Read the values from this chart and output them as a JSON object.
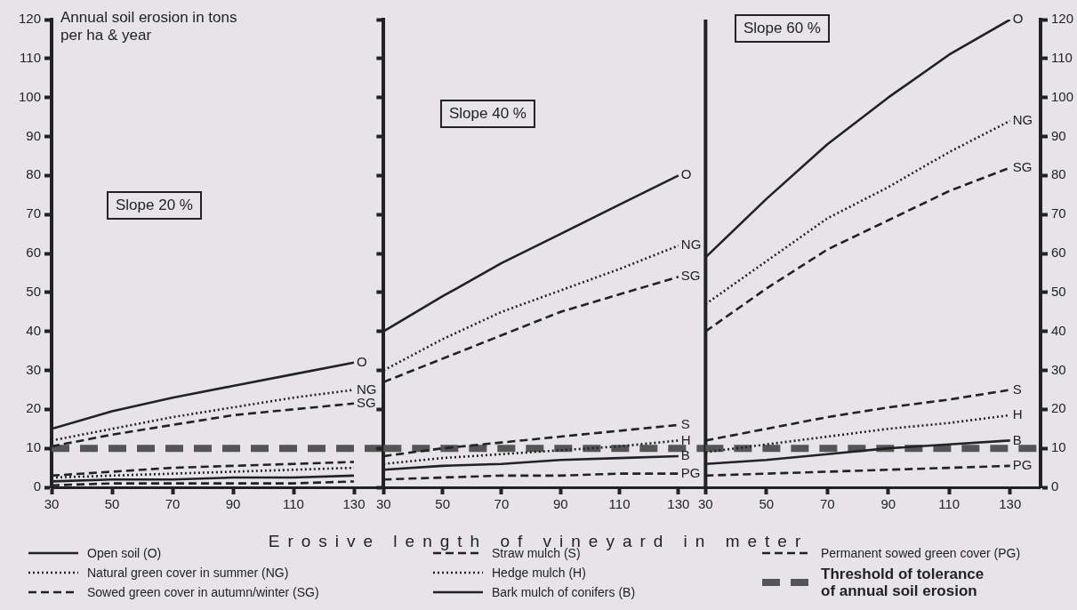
{
  "chart_data": [
    {
      "type": "line",
      "ylabel": "Annual soil erosion in tons per ha & year",
      "x": [
        30,
        50,
        70,
        90,
        110,
        130
      ],
      "xlim": [
        30,
        140
      ],
      "xticks": [
        30,
        50,
        70,
        90,
        110,
        130
      ],
      "ylim": [
        0,
        120
      ],
      "yticks": [
        0,
        10,
        20,
        30,
        40,
        50,
        60,
        70,
        80,
        90,
        100,
        110,
        120
      ],
      "legend": "bottom",
      "marker": "none",
      "grid": false,
      "series": [
        {
          "name": "Open soil (O)",
          "color": "#222222",
          "line_style": "solid",
          "values": [
            15,
            19.5,
            23,
            26,
            29,
            32
          ]
        },
        {
          "name": "Natural green cover in summer (NG)",
          "color": "#222222",
          "line_style": "dotted",
          "values": [
            12,
            15,
            18,
            20.5,
            23,
            25
          ]
        },
        {
          "name": "Sowed green cover in autumn/winter (SG)",
          "color": "#222222",
          "line_style": "dashed",
          "values": [
            10.5,
            13.5,
            16,
            18.5,
            20,
            21.5
          ]
        },
        {
          "name": "Straw mulch (S)",
          "color": "#222222",
          "line_style": "dashed",
          "values": [
            3,
            4,
            5,
            5.5,
            6,
            6.5
          ]
        },
        {
          "name": "Hedge mulch (H)",
          "color": "#222222",
          "line_style": "dotted",
          "values": [
            2.5,
            3,
            3.5,
            4,
            4.5,
            5
          ]
        },
        {
          "name": "Bark mulch of conifers (B)",
          "color": "#222222",
          "line_style": "solid",
          "values": [
            1.5,
            2,
            2,
            2.5,
            2.5,
            3
          ]
        },
        {
          "name": "Permanent sowed green cover (PG)",
          "color": "#222222",
          "line_style": "dashed",
          "values": [
            0.5,
            1,
            1,
            1,
            1,
            1.5
          ]
        }
      ],
      "ref_lines": [
        {
          "axis": "y",
          "value": 10,
          "label": "Threshold of tolerance of annual soil erosion",
          "color": "#555555",
          "line_style": "dashed"
        }
      ],
      "annotations": [
        "Slope 20 %",
        "O",
        "NG",
        "SG"
      ]
    },
    {
      "type": "line",
      "xlabel": "Erosive length of vineyard in meter",
      "x": [
        30,
        50,
        70,
        90,
        110,
        130
      ],
      "xlim": [
        30,
        140
      ],
      "xticks": [
        30,
        50,
        70,
        90,
        110,
        130
      ],
      "ylim": [
        0,
        120
      ],
      "yticks": [
        0,
        10,
        20,
        30,
        40,
        50,
        60,
        70,
        80,
        90,
        100,
        110,
        120
      ],
      "tick_labels": "x",
      "marker": "none",
      "grid": false,
      "series": [
        {
          "color": "#222222",
          "line_style": "solid",
          "values": [
            40,
            49,
            57.5,
            65,
            72.5,
            80
          ]
        },
        {
          "color": "#222222",
          "line_style": "dotted",
          "values": [
            30,
            38,
            45,
            50.5,
            56,
            62
          ]
        },
        {
          "color": "#222222",
          "line_style": "dashed",
          "values": [
            27,
            33,
            39,
            45,
            49.5,
            54
          ]
        },
        {
          "color": "#222222",
          "line_style": "dashed",
          "values": [
            8,
            10,
            11.5,
            13,
            14.5,
            16
          ]
        },
        {
          "color": "#222222",
          "line_style": "dotted",
          "values": [
            6,
            7.5,
            8.5,
            9.5,
            10.5,
            12
          ]
        },
        {
          "color": "#222222",
          "line_style": "solid",
          "values": [
            4.5,
            5.5,
            6,
            7,
            7.5,
            8
          ]
        },
        {
          "color": "#222222",
          "line_style": "dashed",
          "values": [
            2,
            2.5,
            3,
            3,
            3.5,
            3.5
          ]
        }
      ],
      "ref_lines": [
        {
          "axis": "y",
          "value": 10,
          "color": "#555555",
          "line_style": "dashed"
        }
      ],
      "annotations": [
        "Slope 40 %",
        "O",
        "NG",
        "SG",
        "S",
        "H",
        "B",
        "PG"
      ]
    },
    {
      "type": "line",
      "x": [
        30,
        50,
        70,
        90,
        110,
        130
      ],
      "xlim": [
        30,
        140
      ],
      "xticks": [
        30,
        50,
        70,
        90,
        110,
        130
      ],
      "y2lim": [
        0,
        120
      ],
      "y2ticks": [
        0,
        10,
        20,
        30,
        40,
        50,
        60,
        70,
        80,
        90,
        100,
        110,
        120
      ],
      "marker": "none",
      "grid": false,
      "series": [
        {
          "color": "#222222",
          "line_style": "solid",
          "axis": "y2",
          "values": [
            59,
            74,
            88,
            100,
            111,
            120
          ]
        },
        {
          "color": "#222222",
          "line_style": "dotted",
          "axis": "y2",
          "values": [
            47,
            58,
            69,
            77,
            86,
            94
          ]
        },
        {
          "color": "#222222",
          "line_style": "dashed",
          "axis": "y2",
          "values": [
            40,
            51,
            61,
            68.5,
            76,
            82
          ]
        },
        {
          "color": "#222222",
          "line_style": "dashed",
          "axis": "y2",
          "values": [
            12,
            15,
            18,
            20.5,
            22.5,
            25
          ]
        },
        {
          "color": "#222222",
          "line_style": "dotted",
          "axis": "y2",
          "values": [
            9,
            11,
            13,
            15,
            16.5,
            18.5
          ]
        },
        {
          "color": "#222222",
          "line_style": "solid",
          "axis": "y2",
          "values": [
            6,
            7,
            8.5,
            10,
            11,
            12
          ]
        },
        {
          "color": "#222222",
          "line_style": "dashed",
          "axis": "y2",
          "values": [
            3,
            3.5,
            4,
            4.5,
            5,
            5.5
          ]
        }
      ],
      "ref_lines": [
        {
          "axis": "y2",
          "value": 10,
          "color": "#555555",
          "line_style": "dashed"
        }
      ],
      "annotations": [
        "Slope 60 %",
        "O",
        "NG",
        "SG",
        "S",
        "H",
        "B",
        "PG"
      ]
    }
  ]
}
